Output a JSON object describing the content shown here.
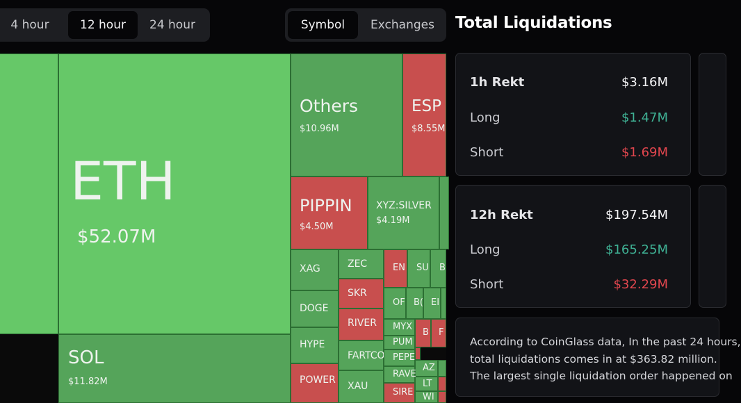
{
  "time_filter": {
    "options": [
      "4 hour",
      "12 hour",
      "24 hour"
    ],
    "selected": "12 hour"
  },
  "view_toggle": {
    "options": [
      "Symbol",
      "Exchanges"
    ],
    "selected": "Symbol"
  },
  "panel": {
    "title": "Total Liquidations",
    "cards": [
      {
        "title": "1h Rekt",
        "total": "$3.16M",
        "long_label": "Long",
        "long": "$1.47M",
        "short_label": "Short",
        "short": "$1.69M"
      },
      {
        "title": "12h Rekt",
        "total": "$197.54M",
        "long_label": "Long",
        "long": "$165.25M",
        "short_label": "Short",
        "short": "$32.29M"
      }
    ],
    "description": [
      "According to CoinGlass data, In the past 24 hours,",
      "total liquidations comes in at $363.82 million.",
      "The largest single liquidation order happened on"
    ]
  },
  "treemap": [
    {
      "symbol": "",
      "value": "",
      "side": "long"
    },
    {
      "symbol": "ETH",
      "value": "$52.07M",
      "side": "long"
    },
    {
      "symbol": "SOL",
      "value": "$11.82M",
      "side": "long"
    },
    {
      "symbol": "Others",
      "value": "$10.96M",
      "side": "long"
    },
    {
      "symbol": "ESP",
      "value": "$8.55M",
      "side": "short"
    },
    {
      "symbol": "PIPPIN",
      "value": "$4.50M",
      "side": "short"
    },
    {
      "symbol": "XYZ:SILVER",
      "value": "$4.19M",
      "side": "long"
    },
    {
      "symbol": "",
      "value": "",
      "side": "long"
    },
    {
      "symbol": "XAG",
      "value": "",
      "side": "long"
    },
    {
      "symbol": "DOGE",
      "value": "",
      "side": "long"
    },
    {
      "symbol": "HYPE",
      "value": "",
      "side": "long"
    },
    {
      "symbol": "POWER",
      "value": "",
      "side": "short"
    },
    {
      "symbol": "ZEC",
      "value": "",
      "side": "long"
    },
    {
      "symbol": "SKR",
      "value": "",
      "side": "short"
    },
    {
      "symbol": "RIVER",
      "value": "",
      "side": "short"
    },
    {
      "symbol": "FARTCO",
      "value": "",
      "side": "long"
    },
    {
      "symbol": "XAU",
      "value": "",
      "side": "long"
    },
    {
      "symbol": "EN",
      "value": "",
      "side": "short"
    },
    {
      "symbol": "SU",
      "value": "",
      "side": "long"
    },
    {
      "symbol": "B",
      "value": "",
      "side": "long"
    },
    {
      "symbol": "OF",
      "value": "",
      "side": "long"
    },
    {
      "symbol": "B(",
      "value": "",
      "side": "long"
    },
    {
      "symbol": "EI",
      "value": "",
      "side": "long"
    },
    {
      "symbol": "",
      "value": "",
      "side": "long"
    },
    {
      "symbol": "MYX",
      "value": "",
      "side": "long"
    },
    {
      "symbol": "B",
      "value": "",
      "side": "short"
    },
    {
      "symbol": "F",
      "value": "",
      "side": "short"
    },
    {
      "symbol": "PUM",
      "value": "",
      "side": "long"
    },
    {
      "symbol": "",
      "value": "",
      "side": "short"
    },
    {
      "symbol": "PEPE",
      "value": "",
      "side": "long"
    },
    {
      "symbol": "AZ",
      "value": "",
      "side": "long"
    },
    {
      "symbol": "",
      "value": "",
      "side": "long"
    },
    {
      "symbol": "RAVE",
      "value": "",
      "side": "long"
    },
    {
      "symbol": "LT",
      "value": "",
      "side": "long"
    },
    {
      "symbol": "",
      "value": "",
      "side": "short"
    },
    {
      "symbol": "SIRE",
      "value": "",
      "side": "short"
    },
    {
      "symbol": "WI",
      "value": "",
      "side": "long"
    },
    {
      "symbol": "",
      "value": "",
      "side": "short"
    }
  ]
}
